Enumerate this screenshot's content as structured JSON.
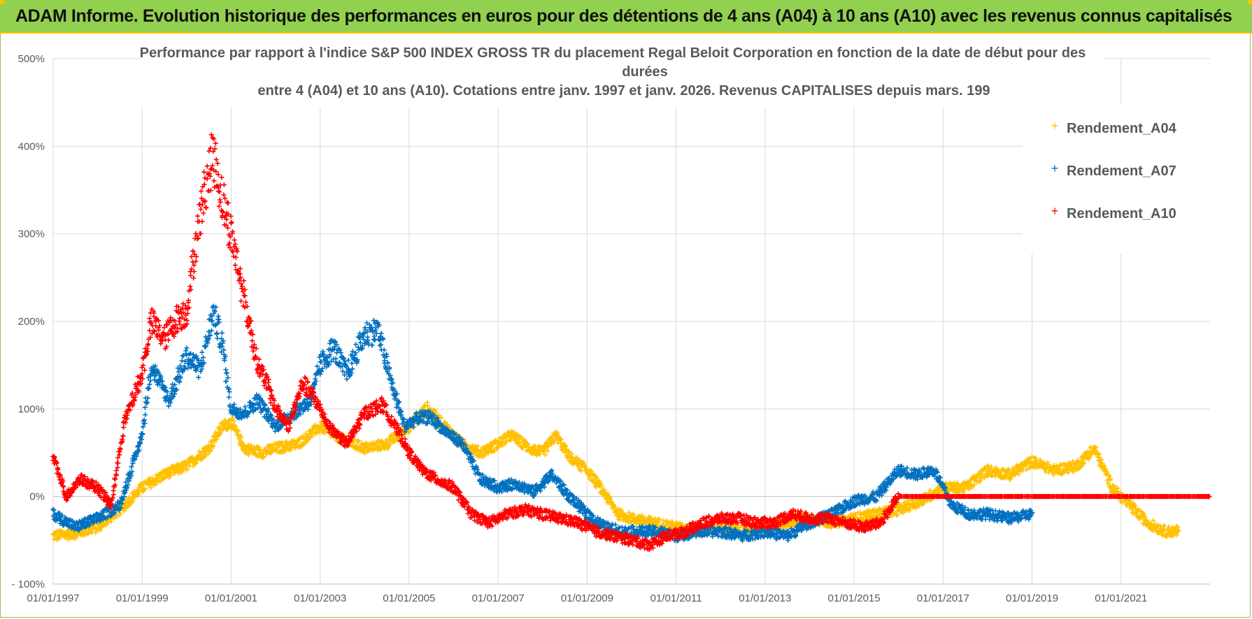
{
  "banner": {
    "text": "ADAM Informe. Evolution historique des performances en euros pour des détentions de 4 ans (A04) à 10 ans (A10) avec les revenus connus capitalisés"
  },
  "colors": {
    "banner_bg": "#92d050",
    "banner_border": "#ffc000",
    "A04": "#ffc000",
    "A07": "#0070c0",
    "A10": "#ff0000",
    "grid": "#d9d9d9",
    "text": "#595959"
  },
  "chart_data": {
    "type": "scatter",
    "title_lines": [
      "Performance par rapport à l'indice S&P 500 INDEX GROSS TR  du placement Regal Beloit Corporation en fonction de la date de début pour des",
      "durées",
      "entre 4 (A04) et 10 ans (A10). Cotations entre janv. 1997 et janv. 2026. Revenus CAPITALISES depuis mars. 199"
    ],
    "xlim": [
      1997.0,
      2023.0
    ],
    "ylim": [
      -100,
      500
    ],
    "y_ticks": [
      -100,
      0,
      100,
      200,
      300,
      400,
      500
    ],
    "y_tick_labels": [
      "- 100%",
      "0%",
      "100%",
      "200%",
      "300%",
      "400%",
      "500%"
    ],
    "x_ticks": [
      1997,
      1999,
      2001,
      2003,
      2005,
      2007,
      2009,
      2011,
      2013,
      2015,
      2017,
      2019,
      2021
    ],
    "x_tick_labels": [
      "01/01/1997",
      "01/01/1999",
      "01/01/2001",
      "01/01/2003",
      "01/01/2005",
      "01/01/2007",
      "01/01/2009",
      "01/01/2011",
      "01/01/2013",
      "01/01/2015",
      "01/01/2017",
      "01/01/2019",
      "01/01/2021"
    ],
    "legend_position": "top-right",
    "series": [
      {
        "name": "Rendement_A04",
        "color": "#ffc000",
        "points": [
          [
            1997.0,
            -45
          ],
          [
            1997.5,
            -42
          ],
          [
            1998.0,
            -35
          ],
          [
            1998.5,
            -15
          ],
          [
            1999.0,
            10
          ],
          [
            1999.5,
            25
          ],
          [
            2000.0,
            35
          ],
          [
            2000.5,
            55
          ],
          [
            2000.8,
            80
          ],
          [
            2001.0,
            85
          ],
          [
            2001.3,
            55
          ],
          [
            2001.7,
            50
          ],
          [
            2002.0,
            55
          ],
          [
            2002.5,
            60
          ],
          [
            2003.0,
            80
          ],
          [
            2003.5,
            65
          ],
          [
            2004.0,
            55
          ],
          [
            2004.5,
            60
          ],
          [
            2005.0,
            80
          ],
          [
            2005.4,
            100
          ],
          [
            2005.8,
            80
          ],
          [
            2006.2,
            60
          ],
          [
            2006.6,
            50
          ],
          [
            2007.0,
            60
          ],
          [
            2007.3,
            70
          ],
          [
            2007.7,
            55
          ],
          [
            2008.0,
            50
          ],
          [
            2008.3,
            70
          ],
          [
            2008.6,
            45
          ],
          [
            2009.0,
            30
          ],
          [
            2009.3,
            10
          ],
          [
            2009.7,
            -20
          ],
          [
            2010.0,
            -25
          ],
          [
            2010.5,
            -30
          ],
          [
            2011.0,
            -35
          ],
          [
            2011.5,
            -40
          ],
          [
            2012.0,
            -35
          ],
          [
            2012.5,
            -40
          ],
          [
            2013.0,
            -35
          ],
          [
            2013.5,
            -30
          ],
          [
            2014.0,
            -25
          ],
          [
            2014.5,
            -30
          ],
          [
            2015.0,
            -25
          ],
          [
            2015.5,
            -20
          ],
          [
            2016.0,
            -15
          ],
          [
            2016.5,
            -5
          ],
          [
            2017.0,
            10
          ],
          [
            2017.5,
            10
          ],
          [
            2018.0,
            30
          ],
          [
            2018.5,
            25
          ],
          [
            2019.0,
            40
          ],
          [
            2019.5,
            30
          ],
          [
            2020.0,
            35
          ],
          [
            2020.4,
            55
          ],
          [
            2020.8,
            10
          ],
          [
            2021.2,
            -10
          ],
          [
            2021.6,
            -30
          ],
          [
            2022.0,
            -40
          ],
          [
            2022.3,
            -40
          ]
        ]
      },
      {
        "name": "Rendement_A07",
        "color": "#0070c0",
        "points": [
          [
            1997.0,
            -20
          ],
          [
            1997.5,
            -35
          ],
          [
            1998.0,
            -25
          ],
          [
            1998.5,
            -10
          ],
          [
            1999.0,
            70
          ],
          [
            1999.2,
            150
          ],
          [
            1999.6,
            110
          ],
          [
            2000.0,
            160
          ],
          [
            2000.3,
            145
          ],
          [
            2000.6,
            210
          ],
          [
            2000.8,
            175
          ],
          [
            2001.0,
            100
          ],
          [
            2001.3,
            95
          ],
          [
            2001.6,
            110
          ],
          [
            2002.0,
            80
          ],
          [
            2002.4,
            95
          ],
          [
            2002.8,
            110
          ],
          [
            2003.0,
            150
          ],
          [
            2003.3,
            170
          ],
          [
            2003.6,
            140
          ],
          [
            2004.0,
            185
          ],
          [
            2004.3,
            190
          ],
          [
            2004.6,
            130
          ],
          [
            2004.9,
            80
          ],
          [
            2005.2,
            90
          ],
          [
            2005.5,
            90
          ],
          [
            2005.8,
            75
          ],
          [
            2006.2,
            60
          ],
          [
            2006.6,
            20
          ],
          [
            2007.0,
            10
          ],
          [
            2007.4,
            15
          ],
          [
            2007.8,
            5
          ],
          [
            2008.2,
            25
          ],
          [
            2008.6,
            0
          ],
          [
            2009.0,
            -20
          ],
          [
            2009.4,
            -35
          ],
          [
            2009.8,
            -40
          ],
          [
            2010.2,
            -40
          ],
          [
            2010.6,
            -40
          ],
          [
            2011.0,
            -45
          ],
          [
            2011.5,
            -40
          ],
          [
            2012.0,
            -40
          ],
          [
            2012.5,
            -45
          ],
          [
            2013.0,
            -40
          ],
          [
            2013.5,
            -45
          ],
          [
            2014.0,
            -30
          ],
          [
            2014.5,
            -20
          ],
          [
            2015.0,
            -5
          ],
          [
            2015.5,
            0
          ],
          [
            2016.0,
            30
          ],
          [
            2016.4,
            25
          ],
          [
            2016.8,
            30
          ],
          [
            2017.2,
            -10
          ],
          [
            2017.6,
            -20
          ],
          [
            2018.0,
            -20
          ],
          [
            2018.5,
            -25
          ],
          [
            2019.0,
            -20
          ]
        ]
      },
      {
        "name": "Rendement_A10",
        "color": "#ff0000",
        "points": [
          [
            1997.0,
            45
          ],
          [
            1997.3,
            0
          ],
          [
            1997.6,
            20
          ],
          [
            1998.0,
            10
          ],
          [
            1998.3,
            -10
          ],
          [
            1998.6,
            85
          ],
          [
            1999.0,
            140
          ],
          [
            1999.2,
            200
          ],
          [
            1999.5,
            180
          ],
          [
            1999.8,
            205
          ],
          [
            2000.0,
            210
          ],
          [
            2000.2,
            290
          ],
          [
            2000.4,
            350
          ],
          [
            2000.6,
            390
          ],
          [
            2000.8,
            340
          ],
          [
            2001.0,
            300
          ],
          [
            2001.2,
            250
          ],
          [
            2001.4,
            200
          ],
          [
            2001.6,
            150
          ],
          [
            2001.8,
            130
          ],
          [
            2002.0,
            100
          ],
          [
            2002.3,
            80
          ],
          [
            2002.6,
            130
          ],
          [
            2002.9,
            110
          ],
          [
            2003.2,
            80
          ],
          [
            2003.6,
            60
          ],
          [
            2004.0,
            95
          ],
          [
            2004.4,
            105
          ],
          [
            2004.8,
            70
          ],
          [
            2005.0,
            50
          ],
          [
            2005.3,
            30
          ],
          [
            2005.6,
            20
          ],
          [
            2006.0,
            10
          ],
          [
            2006.4,
            -20
          ],
          [
            2006.8,
            -30
          ],
          [
            2007.2,
            -20
          ],
          [
            2007.6,
            -15
          ],
          [
            2008.0,
            -20
          ],
          [
            2008.4,
            -25
          ],
          [
            2008.8,
            -30
          ],
          [
            2009.2,
            -40
          ],
          [
            2009.6,
            -45
          ],
          [
            2010.0,
            -50
          ],
          [
            2010.4,
            -55
          ],
          [
            2010.8,
            -45
          ],
          [
            2011.2,
            -40
          ],
          [
            2011.6,
            -30
          ],
          [
            2012.0,
            -25
          ],
          [
            2012.4,
            -25
          ],
          [
            2012.8,
            -30
          ],
          [
            2013.2,
            -30
          ],
          [
            2013.6,
            -20
          ],
          [
            2014.0,
            -25
          ],
          [
            2014.4,
            -25
          ],
          [
            2014.8,
            -30
          ],
          [
            2015.2,
            -35
          ],
          [
            2015.6,
            -30
          ],
          [
            2016.0,
            0
          ],
          [
            2016.5,
            0
          ],
          [
            2017.0,
            0
          ],
          [
            2018.0,
            0
          ],
          [
            2019.0,
            0
          ],
          [
            2020.0,
            0
          ],
          [
            2021.0,
            0
          ],
          [
            2022.0,
            0
          ],
          [
            2023.0,
            0
          ]
        ]
      }
    ]
  }
}
